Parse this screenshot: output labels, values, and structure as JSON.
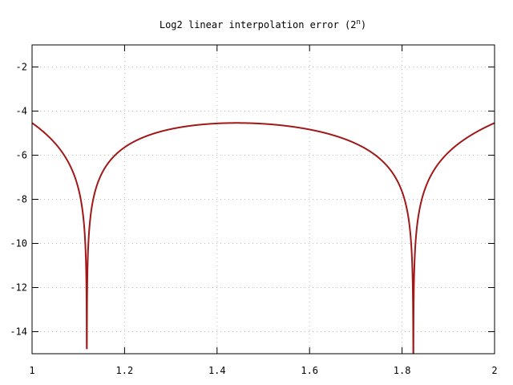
{
  "chart_data": {
    "type": "line",
    "title": "Log2 linear interpolation error (2",
    "title_superscript": "n",
    "title_close": ")",
    "xlabel": "",
    "ylabel": "",
    "xlim": [
      1,
      2
    ],
    "ylim": [
      -15,
      -1
    ],
    "xticks": [
      1,
      1.2,
      1.4,
      1.6,
      1.8,
      2
    ],
    "xtick_labels": [
      "1",
      "1.2",
      "1.4",
      "1.6",
      "1.8",
      "2"
    ],
    "yticks": [
      -2,
      -4,
      -6,
      -8,
      -10,
      -12,
      -14
    ],
    "ytick_labels": [
      "-2",
      "-4",
      "-6",
      "-8",
      "-10",
      "-12",
      "-14"
    ],
    "grid": true,
    "series": [
      {
        "function": "log2(|log2(x) - (x - 1) - 0.0430|)",
        "color": "#a01818",
        "zeros_of_error_at_x": [
          1.115,
          1.821
        ],
        "max": {
          "x": 1.4427,
          "y": -4.54
        },
        "endpoints": [
          {
            "x": 1,
            "y": -4.54
          },
          {
            "x": 2,
            "y": -4.54
          }
        ]
      }
    ]
  }
}
